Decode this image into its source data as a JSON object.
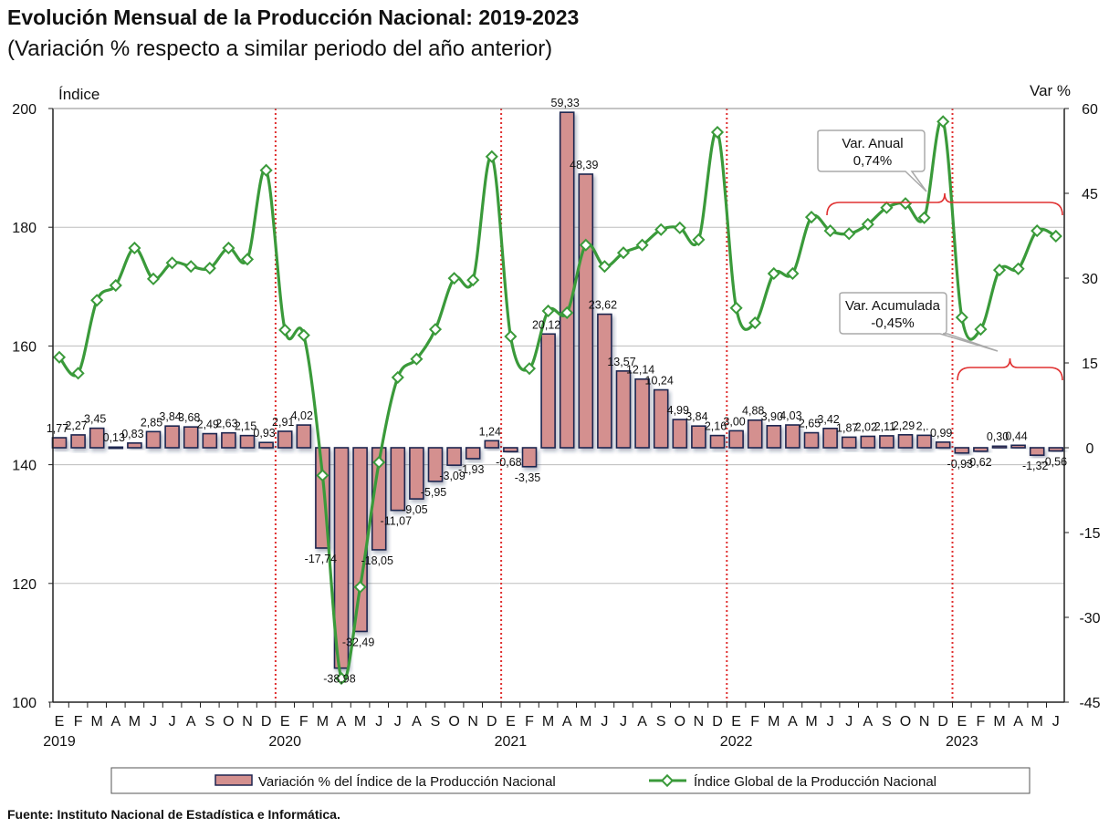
{
  "title": "Evolución Mensual de la Producción Nacional: 2019-2023",
  "subtitle": "(Variación % respecto a similar periodo del año anterior)",
  "footer": "Fuente: Instituto Nacional de Estadística e Informática.",
  "colors": {
    "bar_fill": "#d4908f",
    "bar_stroke": "#1f2550",
    "line": "#3a9a3a",
    "divider": "#e03030",
    "bracket": "#e03030"
  },
  "chart_data": {
    "type": "bar+line",
    "categories": [
      "E",
      "F",
      "M",
      "A",
      "M",
      "J",
      "J",
      "A",
      "S",
      "O",
      "N",
      "D",
      "E",
      "F",
      "M",
      "A",
      "M",
      "J",
      "J",
      "A",
      "S",
      "O",
      "N",
      "D",
      "E",
      "F",
      "M",
      "A",
      "M",
      "J",
      "J",
      "A",
      "S",
      "O",
      "N",
      "D",
      "E",
      "F",
      "M",
      "A",
      "M",
      "J",
      "J",
      "A",
      "S",
      "O",
      "N",
      "D",
      "E",
      "F",
      "M",
      "A",
      "M",
      "J"
    ],
    "years": [
      {
        "label": "2019",
        "index": 0
      },
      {
        "label": "2020",
        "index": 12
      },
      {
        "label": "2021",
        "index": 24
      },
      {
        "label": "2022",
        "index": 36
      },
      {
        "label": "2023",
        "index": 48
      }
    ],
    "left_axis": {
      "label": "Índice",
      "ylim": [
        100,
        200
      ],
      "ticks": [
        100,
        120,
        140,
        160,
        180,
        200
      ]
    },
    "right_axis": {
      "label": "Var %",
      "ylim": [
        -45,
        60
      ],
      "ticks": [
        -45,
        -30,
        -15,
        0,
        15,
        30,
        45,
        60
      ]
    },
    "grid": true,
    "legend_placement": "bottom",
    "series": [
      {
        "name": "Variación % del Índice de la Producción Nacional",
        "type": "bar",
        "axis": "right",
        "values": [
          1.77,
          2.27,
          3.45,
          0.13,
          0.83,
          2.85,
          3.84,
          3.68,
          2.49,
          2.63,
          2.15,
          0.93,
          2.91,
          4.02,
          -17.74,
          -38.98,
          -32.49,
          -18.05,
          -11.07,
          -9.05,
          -5.95,
          -3.09,
          -1.93,
          1.24,
          -0.68,
          -3.35,
          20.12,
          59.33,
          48.39,
          23.62,
          13.57,
          12.14,
          10.24,
          4.99,
          3.84,
          2.16,
          3.0,
          4.88,
          3.9,
          4.03,
          2.65,
          3.42,
          1.87,
          2.02,
          2.11,
          2.29,
          2.2,
          0.99,
          -0.93,
          -0.62,
          0.3,
          0.44,
          -1.32,
          -0.56
        ],
        "labels": [
          "1,77",
          "2,27",
          "3,45",
          "0,13",
          "0,83",
          "2,85",
          "3,84",
          "3,68",
          "2,49",
          "2,63",
          "2,15",
          "0,93",
          "2,91",
          "4,02",
          "-17,74",
          "-38,98",
          "-32,49",
          "-18,05",
          "-11,07",
          "-9,05",
          "-5,95",
          "-3,09",
          "-1,93",
          "1,24",
          "-0,68",
          "-3,35",
          "20,12",
          "59,33",
          "48,39",
          "23,62",
          "13,57",
          "12,14",
          "10,24",
          "4,99",
          "3,84",
          "2,16",
          "3,00",
          "4,88",
          "3,90",
          "4,03",
          "2,65",
          "3,42",
          "1,87",
          "2,02",
          "2,11",
          "2,29",
          "2,.",
          "0,99",
          "-0,93",
          "-0,62",
          "0,30",
          "0,44",
          "-1,32",
          "-0,56"
        ]
      },
      {
        "name": "Índice Global de la Producción Nacional",
        "type": "line",
        "axis": "left",
        "values": [
          158.1,
          155.4,
          167.7,
          170.2,
          176.5,
          171.3,
          174.0,
          173.4,
          173.1,
          176.5,
          174.6,
          189.6,
          162.7,
          161.8,
          138.2,
          104.0,
          119.4,
          140.4,
          154.7,
          157.8,
          162.8,
          171.4,
          171.1,
          191.9,
          161.6,
          156.2,
          165.9,
          165.6,
          177.0,
          173.4,
          175.7,
          177.0,
          179.6,
          179.9,
          177.9,
          196.0,
          166.4,
          163.9,
          172.2,
          172.2,
          181.7,
          179.4,
          178.9,
          180.5,
          183.3,
          184.0,
          181.6,
          197.8,
          164.8,
          162.8,
          172.8,
          173.0,
          179.4,
          178.5
        ]
      }
    ],
    "annotations": [
      {
        "title": "Var. Anual",
        "value": "0,74%",
        "span": [
          "J 2022",
          "J 2023"
        ]
      },
      {
        "title": "Var. Acumulada",
        "value": "-0,45%",
        "span": [
          "E 2023",
          "J 2023"
        ]
      }
    ]
  }
}
